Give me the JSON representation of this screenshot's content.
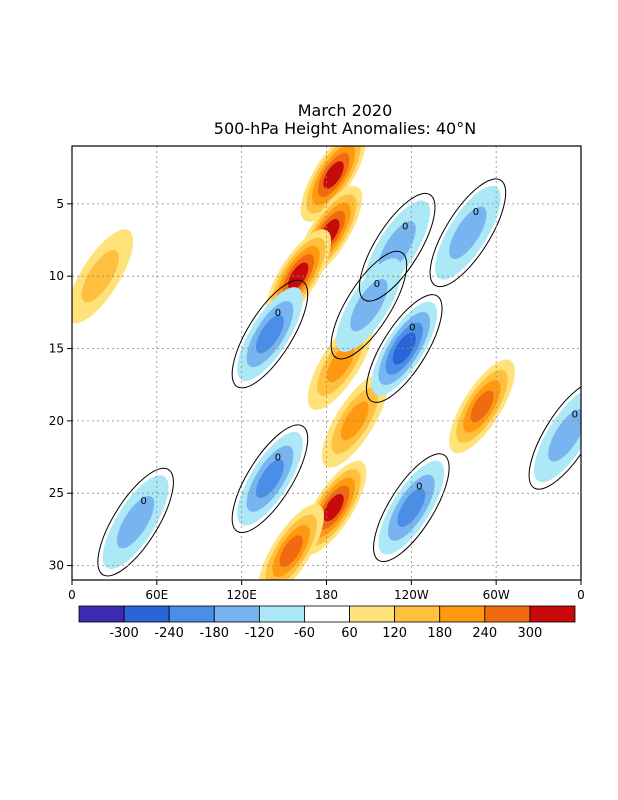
{
  "chart_data": {
    "type": "heatmap",
    "title": "March 2020",
    "subtitle": "500-hPa Height Anomalies: 40°N",
    "xlabel": "",
    "ylabel": "",
    "x_ticks": [
      "0",
      "60E",
      "120E",
      "180",
      "120W",
      "60W",
      "0"
    ],
    "y_ticks": [
      "5",
      "10",
      "15",
      "20",
      "25",
      "30"
    ],
    "xlim": [
      0,
      360
    ],
    "ylim": [
      1,
      31
    ],
    "grid": true,
    "contour_label": "0",
    "colorbar": {
      "labels": [
        "-300",
        "-240",
        "-180",
        "-120",
        "-60",
        "60",
        "120",
        "180",
        "240",
        "300"
      ],
      "colors": [
        "#3c2ab0",
        "#2a64d9",
        "#4a8ee8",
        "#78b4f0",
        "#ade8f7",
        "#ffffff",
        "#ffe27a",
        "#ffc040",
        "#ff9a10",
        "#f06a10",
        "#c80a0a"
      ]
    },
    "anomaly_features": [
      {
        "lon": 185,
        "day": 3,
        "value": 300
      },
      {
        "lon": 182,
        "day": 7,
        "value": 320
      },
      {
        "lon": 160,
        "day": 10,
        "value": 310
      },
      {
        "lon": 185,
        "day": 26,
        "value": 300
      },
      {
        "lon": 190,
        "day": 16,
        "value": 220
      },
      {
        "lon": 200,
        "day": 20,
        "value": 200
      },
      {
        "lon": 155,
        "day": 29,
        "value": 240
      },
      {
        "lon": 290,
        "day": 19,
        "value": 250
      },
      {
        "lon": 20,
        "day": 10,
        "value": 140
      },
      {
        "lon": 140,
        "day": 14,
        "value": -200
      },
      {
        "lon": 140,
        "day": 24,
        "value": -200
      },
      {
        "lon": 235,
        "day": 15,
        "value": -250
      },
      {
        "lon": 240,
        "day": 26,
        "value": -200
      },
      {
        "lon": 230,
        "day": 8,
        "value": -170
      },
      {
        "lon": 280,
        "day": 7,
        "value": -150
      },
      {
        "lon": 45,
        "day": 27,
        "value": -140
      },
      {
        "lon": 350,
        "day": 21,
        "value": -150
      },
      {
        "lon": 210,
        "day": 12,
        "value": -160
      }
    ]
  }
}
